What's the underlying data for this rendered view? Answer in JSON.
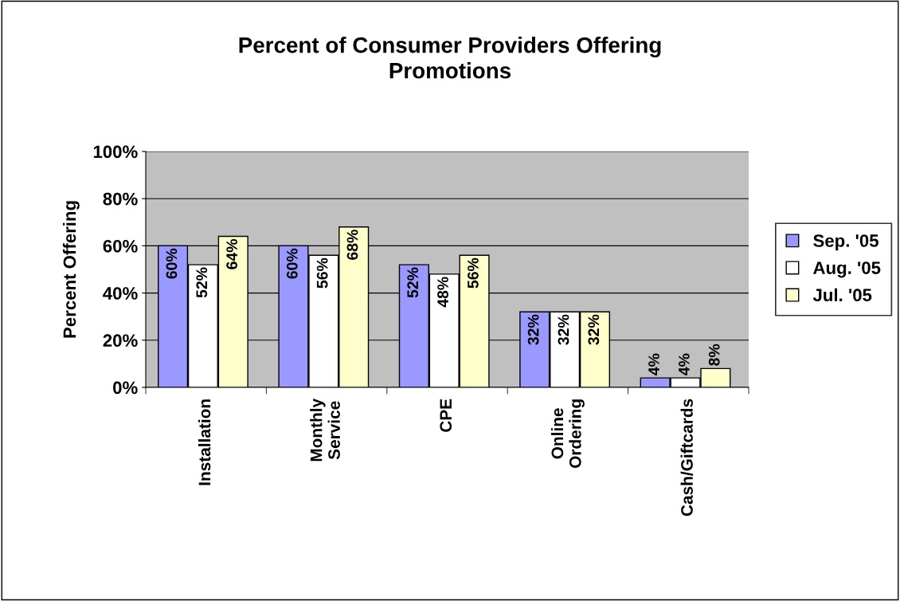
{
  "chart_data": {
    "type": "bar",
    "title": "Percent of Consumer Providers Offering\nPromotions",
    "ylabel": "Percent Offering",
    "categories": [
      "Installation",
      "Monthly\nService",
      "CPE",
      "Online\nOrdering",
      "Cash/Giftcards"
    ],
    "series": [
      {
        "name": "Sep. '05",
        "color": "#9999ff",
        "values": [
          60,
          60,
          52,
          32,
          4
        ],
        "value_labels": [
          "60%",
          "60%",
          "52%",
          "32%",
          "4%"
        ]
      },
      {
        "name": "Aug. '05",
        "color": "#ffffff",
        "values": [
          52,
          56,
          48,
          32,
          4
        ],
        "value_labels": [
          "52%",
          "56%",
          "48%",
          "32%",
          "4%"
        ]
      },
      {
        "name": "Jul. '05",
        "color": "#ffffcc",
        "values": [
          64,
          68,
          56,
          32,
          8
        ],
        "value_labels": [
          "64%",
          "68%",
          "56%",
          "32%",
          "8%"
        ]
      }
    ],
    "ylim": [
      0,
      100
    ],
    "yticks": [
      {
        "value": 0,
        "label": "0%"
      },
      {
        "value": 20,
        "label": "20%"
      },
      {
        "value": 40,
        "label": "40%"
      },
      {
        "value": 60,
        "label": "60%"
      },
      {
        "value": 80,
        "label": "80%"
      },
      {
        "value": 100,
        "label": "100%"
      }
    ],
    "grid": "y",
    "legend": "right"
  }
}
